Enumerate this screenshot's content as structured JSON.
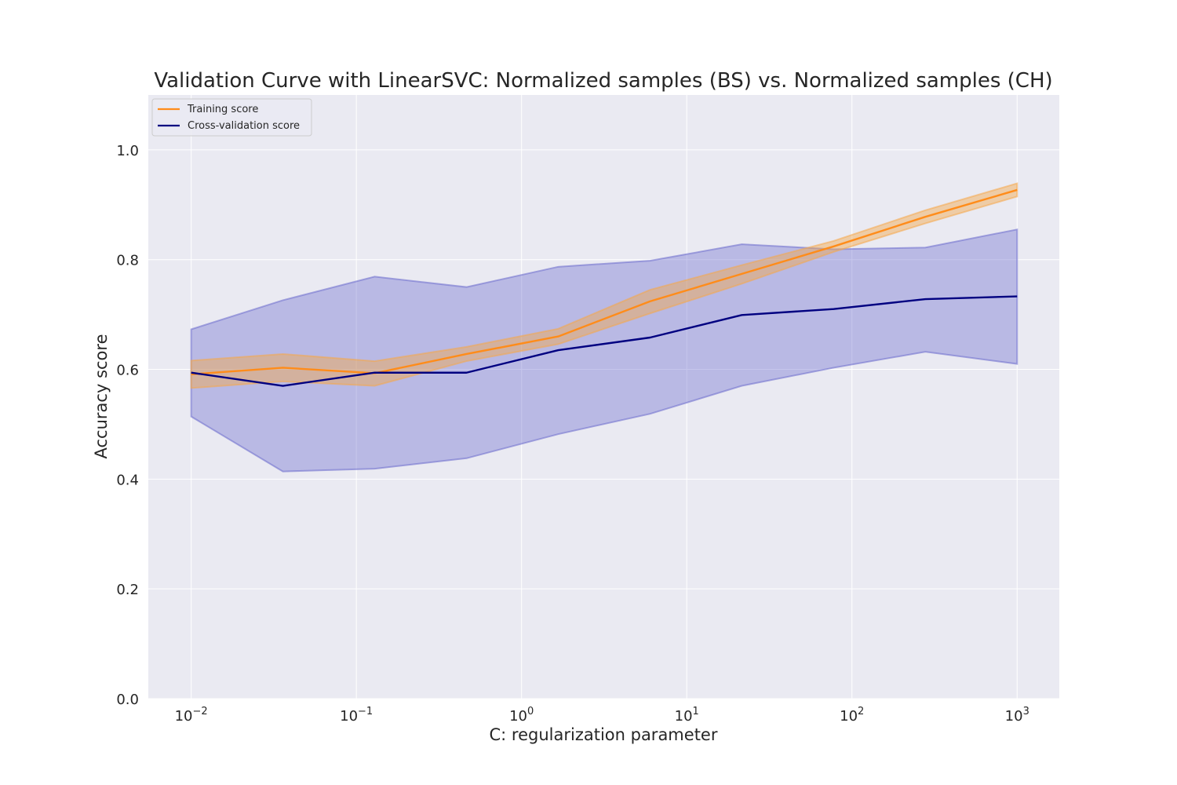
{
  "chart_data": {
    "type": "line",
    "title": "Validation Curve with LinearSVC: Normalized samples (BS) vs. Normalized samples (CH)",
    "xlabel": "C: regularization parameter",
    "ylabel": "Accuracy score",
    "x_scale": "log",
    "xlim": [
      0.0055,
      1800
    ],
    "ylim": [
      0.0,
      1.1
    ],
    "grid": true,
    "legend_position": "top-left",
    "x_ticks": [
      {
        "value": 0.01,
        "base": "10",
        "exp": "−2"
      },
      {
        "value": 0.1,
        "base": "10",
        "exp": "−1"
      },
      {
        "value": 1,
        "base": "10",
        "exp": "0"
      },
      {
        "value": 10,
        "base": "10",
        "exp": "1"
      },
      {
        "value": 100,
        "base": "10",
        "exp": "2"
      },
      {
        "value": 1000,
        "base": "10",
        "exp": "3"
      }
    ],
    "y_ticks": [
      {
        "value": 0.0,
        "label": "0.0"
      },
      {
        "value": 0.2,
        "label": "0.2"
      },
      {
        "value": 0.4,
        "label": "0.4"
      },
      {
        "value": 0.6,
        "label": "0.6"
      },
      {
        "value": 0.8,
        "label": "0.8"
      },
      {
        "value": 1.0,
        "label": "1.0"
      }
    ],
    "x": [
      0.01,
      0.0359,
      0.129,
      0.464,
      1.668,
      5.995,
      21.54,
      77.43,
      278.3,
      1000
    ],
    "series": [
      {
        "name": "Training score",
        "color": "#ff8c1a",
        "band_color": "#f5a84a",
        "values": [
          0.591,
          0.603,
          0.593,
          0.628,
          0.66,
          0.724,
          0.774,
          0.824,
          0.878,
          0.927
        ],
        "band_lower": [
          0.566,
          0.578,
          0.57,
          0.615,
          0.646,
          0.702,
          0.756,
          0.814,
          0.866,
          0.915
        ],
        "band_upper": [
          0.616,
          0.628,
          0.615,
          0.641,
          0.674,
          0.745,
          0.79,
          0.834,
          0.89,
          0.939
        ]
      },
      {
        "name": "Cross-validation score",
        "color": "#000080",
        "band_color": "#6a6acc",
        "values": [
          0.594,
          0.57,
          0.594,
          0.594,
          0.635,
          0.658,
          0.699,
          0.71,
          0.728,
          0.733
        ],
        "band_lower": [
          0.514,
          0.414,
          0.419,
          0.438,
          0.482,
          0.519,
          0.57,
          0.603,
          0.632,
          0.61
        ],
        "band_upper": [
          0.673,
          0.726,
          0.769,
          0.75,
          0.787,
          0.798,
          0.828,
          0.819,
          0.822,
          0.855
        ]
      }
    ]
  }
}
